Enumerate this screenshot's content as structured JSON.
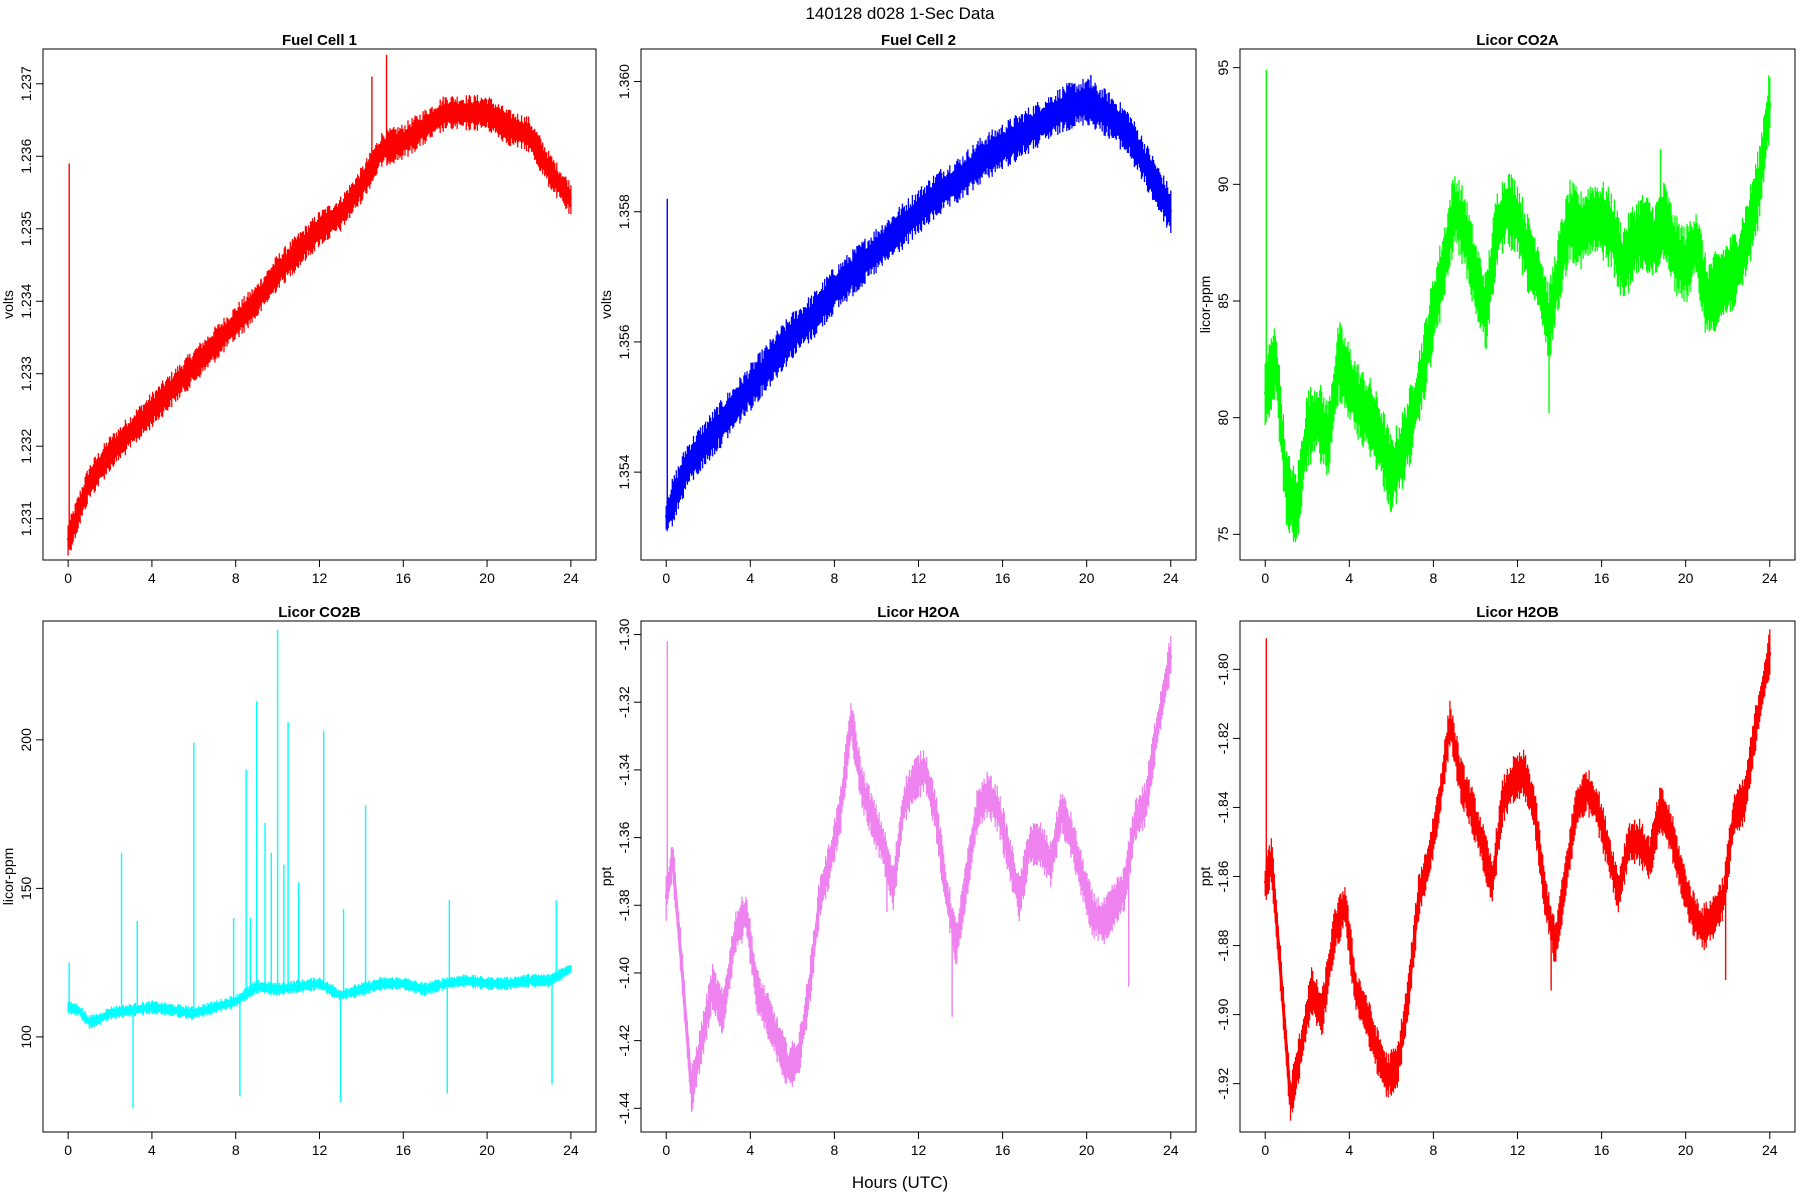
{
  "figure": {
    "title": "140128   d028   1-Sec Data",
    "xlabel": "Hours (UTC)"
  },
  "chart_data": [
    {
      "type": "line",
      "title": "Fuel Cell 1",
      "ylabel": "volts",
      "xlabel": "",
      "color": "#ff0000",
      "xlim": [
        -1.2,
        25.2
      ],
      "ylim": [
        1.23043,
        1.23748
      ],
      "xticks": [
        0,
        4,
        8,
        12,
        16,
        20,
        24
      ],
      "xtick_labels": [
        "0",
        "4",
        "8",
        "12",
        "16",
        "20",
        "24"
      ],
      "yticks": [
        1.231,
        1.232,
        1.233,
        1.234,
        1.235,
        1.236,
        1.237
      ],
      "ytick_labels": [
        "1.231",
        "1.232",
        "1.233",
        "1.234",
        "1.235",
        "1.236",
        "1.237"
      ],
      "x": [
        0,
        0.5,
        1,
        2,
        3,
        4,
        5,
        6,
        7,
        8,
        9,
        10,
        11,
        12,
        13,
        14,
        15,
        16,
        17,
        18,
        19,
        20,
        21,
        22,
        23,
        24
      ],
      "y": [
        1.2307,
        1.2311,
        1.2315,
        1.2319,
        1.2322,
        1.2325,
        1.2328,
        1.2331,
        1.2334,
        1.2337,
        1.234,
        1.2344,
        1.2347,
        1.235,
        1.2352,
        1.2356,
        1.2361,
        1.2362,
        1.2364,
        1.2366,
        1.2366,
        1.2366,
        1.2364,
        1.2363,
        1.2358,
        1.2354
      ],
      "band": 0.00022,
      "spikes": [
        {
          "x": 0.05,
          "y": 1.2359
        },
        {
          "x": 15.2,
          "y": 1.2374
        },
        {
          "x": 14.5,
          "y": 1.2371
        },
        {
          "x": 9.2,
          "y": 1.2343
        }
      ]
    },
    {
      "type": "line",
      "title": "Fuel Cell 2",
      "ylabel": "volts",
      "xlabel": "",
      "color": "#0000ff",
      "xlim": [
        -1.2,
        25.2
      ],
      "ylim": [
        1.35265,
        1.3605
      ],
      "xticks": [
        0,
        4,
        8,
        12,
        16,
        20,
        24
      ],
      "xtick_labels": [
        "0",
        "4",
        "8",
        "12",
        "16",
        "20",
        "24"
      ],
      "yticks": [
        1.354,
        1.356,
        1.358,
        1.36
      ],
      "ytick_labels": [
        "1.354",
        "1.356",
        "1.358",
        "1.360"
      ],
      "x": [
        0,
        0.5,
        1,
        2,
        3,
        4,
        5,
        6,
        7,
        8,
        9,
        10,
        11,
        12,
        13,
        14,
        15,
        16,
        17,
        18,
        19,
        20,
        21,
        22,
        23,
        24
      ],
      "y": [
        1.3533,
        1.3537,
        1.3541,
        1.3545,
        1.3549,
        1.3553,
        1.3557,
        1.3561,
        1.3564,
        1.3568,
        1.3571,
        1.3574,
        1.3577,
        1.358,
        1.3583,
        1.3585,
        1.3588,
        1.359,
        1.3592,
        1.3594,
        1.3596,
        1.3597,
        1.3595,
        1.3592,
        1.3586,
        1.358
      ],
      "band": 0.00032,
      "spikes": [
        {
          "x": 0.05,
          "y": 1.3582
        },
        {
          "x": 20.2,
          "y": 1.3601
        }
      ]
    },
    {
      "type": "line",
      "title": "Licor CO2A",
      "ylabel": "licor-ppm",
      "xlabel": "",
      "color": "#00ff00",
      "xlim": [
        -1.2,
        25.2
      ],
      "ylim": [
        73.9,
        95.8
      ],
      "xticks": [
        0,
        4,
        8,
        12,
        16,
        20,
        24
      ],
      "xtick_labels": [
        "0",
        "4",
        "8",
        "12",
        "16",
        "20",
        "24"
      ],
      "yticks": [
        75,
        80,
        85,
        90,
        95
      ],
      "ytick_labels": [
        "75",
        "80",
        "85",
        "90",
        "95"
      ],
      "x": [
        0,
        0.5,
        1,
        1.5,
        2,
        2.5,
        3,
        3.5,
        4,
        4.5,
        5,
        5.5,
        6,
        6.5,
        7,
        7.5,
        8,
        8.5,
        9,
        9.5,
        10,
        10.5,
        11,
        11.5,
        12,
        12.5,
        13,
        13.5,
        14,
        14.5,
        15,
        15.5,
        16,
        16.5,
        17,
        17.5,
        18,
        18.5,
        19,
        19.5,
        20,
        20.5,
        21,
        21.5,
        22,
        22.5,
        23,
        23.5,
        24
      ],
      "y": [
        81,
        82.5,
        77,
        76,
        79.5,
        80,
        79,
        82.5,
        81.5,
        80.5,
        80,
        79,
        77.5,
        78.5,
        80,
        82,
        84.5,
        86.5,
        89,
        88,
        86,
        84.5,
        88,
        89,
        88.5,
        87,
        86,
        84,
        86.5,
        88.5,
        88,
        88.5,
        88.5,
        88,
        86.5,
        87.5,
        88,
        87.5,
        88.5,
        87,
        86.5,
        87.5,
        85,
        85.5,
        86,
        86.5,
        88,
        90,
        93.5
      ],
      "band": 1.5,
      "spikes": [
        {
          "x": 0.05,
          "y": 94.9
        },
        {
          "x": 13.5,
          "y": 80.2
        },
        {
          "x": 18.8,
          "y": 91.5
        }
      ]
    },
    {
      "type": "line",
      "title": "Licor CO2B",
      "ylabel": "licor-ppm",
      "xlabel": "",
      "color": "#00ffff",
      "xlim": [
        -1.2,
        25.2
      ],
      "ylim": [
        68,
        240
      ],
      "xticks": [
        0,
        4,
        8,
        12,
        16,
        20,
        24
      ],
      "xtick_labels": [
        "0",
        "4",
        "8",
        "12",
        "16",
        "20",
        "24"
      ],
      "yticks": [
        100,
        150,
        200
      ],
      "ytick_labels": [
        "100",
        "150",
        "200"
      ],
      "x": [
        0,
        0.5,
        1,
        1.5,
        2,
        3,
        4,
        5,
        6,
        7,
        8,
        9,
        10,
        11,
        12,
        13,
        14,
        15,
        16,
        17,
        18,
        19,
        20,
        21,
        22,
        23,
        24
      ],
      "y": [
        110,
        109,
        105,
        106,
        108,
        109,
        110,
        109,
        108,
        110,
        112,
        117,
        116,
        117,
        118,
        114,
        116,
        118,
        118,
        116,
        118,
        119,
        118,
        118,
        119,
        119,
        123
      ],
      "band": 2,
      "spikes": [
        {
          "x": 0.05,
          "y": 125
        },
        {
          "x": 2.55,
          "y": 162
        },
        {
          "x": 3.1,
          "y": 76
        },
        {
          "x": 3.3,
          "y": 139
        },
        {
          "x": 6.0,
          "y": 199
        },
        {
          "x": 7.9,
          "y": 140
        },
        {
          "x": 8.2,
          "y": 80
        },
        {
          "x": 8.5,
          "y": 190
        },
        {
          "x": 8.7,
          "y": 140
        },
        {
          "x": 9.0,
          "y": 213
        },
        {
          "x": 9.4,
          "y": 172
        },
        {
          "x": 9.7,
          "y": 162
        },
        {
          "x": 10.0,
          "y": 237
        },
        {
          "x": 10.3,
          "y": 158
        },
        {
          "x": 10.5,
          "y": 206
        },
        {
          "x": 11.0,
          "y": 152
        },
        {
          "x": 12.2,
          "y": 203
        },
        {
          "x": 13.0,
          "y": 78
        },
        {
          "x": 13.15,
          "y": 143
        },
        {
          "x": 14.2,
          "y": 178
        },
        {
          "x": 18.1,
          "y": 81
        },
        {
          "x": 18.2,
          "y": 146
        },
        {
          "x": 23.1,
          "y": 84
        },
        {
          "x": 23.3,
          "y": 146
        }
      ]
    },
    {
      "type": "line",
      "title": "Licor H2OA",
      "ylabel": "ppt",
      "xlabel": "",
      "color": "#ee82ee",
      "xlim": [
        -1.2,
        25.2
      ],
      "ylim": [
        -1.447,
        -1.296
      ],
      "xticks": [
        0,
        4,
        8,
        12,
        16,
        20,
        24
      ],
      "xtick_labels": [
        "0",
        "4",
        "8",
        "12",
        "16",
        "20",
        "24"
      ],
      "yticks": [
        -1.44,
        -1.42,
        -1.4,
        -1.38,
        -1.36,
        -1.34,
        -1.32,
        -1.3
      ],
      "ytick_labels": [
        "-1.44",
        "-1.42",
        "-1.40",
        "-1.38",
        "-1.36",
        "-1.34",
        "-1.32",
        "-1.30"
      ],
      "x": [
        0,
        0.3,
        0.7,
        1.2,
        1.7,
        2.2,
        2.7,
        3.3,
        3.8,
        4.3,
        4.8,
        5.3,
        5.8,
        6.3,
        6.8,
        7.3,
        7.8,
        8.3,
        8.8,
        9.3,
        9.8,
        10.3,
        10.8,
        11.3,
        11.8,
        12.3,
        12.8,
        13.3,
        13.8,
        14.3,
        14.8,
        15.3,
        15.8,
        16.3,
        16.8,
        17.3,
        17.8,
        18.3,
        18.8,
        19.3,
        19.8,
        20.3,
        20.8,
        21.3,
        21.8,
        22.3,
        22.8,
        23.3,
        24
      ],
      "y": [
        -1.378,
        -1.366,
        -1.395,
        -1.435,
        -1.42,
        -1.404,
        -1.412,
        -1.388,
        -1.382,
        -1.405,
        -1.412,
        -1.42,
        -1.428,
        -1.425,
        -1.405,
        -1.378,
        -1.367,
        -1.352,
        -1.325,
        -1.345,
        -1.354,
        -1.362,
        -1.375,
        -1.35,
        -1.343,
        -1.34,
        -1.352,
        -1.375,
        -1.392,
        -1.372,
        -1.352,
        -1.347,
        -1.352,
        -1.365,
        -1.378,
        -1.362,
        -1.362,
        -1.368,
        -1.352,
        -1.36,
        -1.372,
        -1.383,
        -1.385,
        -1.38,
        -1.375,
        -1.355,
        -1.35,
        -1.33,
        -1.306
      ],
      "band": 0.006,
      "spikes": [
        {
          "x": 0.05,
          "y": -1.302
        },
        {
          "x": 10.5,
          "y": -1.382
        },
        {
          "x": 13.6,
          "y": -1.413
        },
        {
          "x": 22.0,
          "y": -1.404
        }
      ]
    },
    {
      "type": "line",
      "title": "Licor H2OB",
      "ylabel": "ppt",
      "xlabel": "",
      "color": "#ff0000",
      "xlim": [
        -1.2,
        25.2
      ],
      "ylim": [
        -1.934,
        -1.786
      ],
      "xticks": [
        0,
        4,
        8,
        12,
        16,
        20,
        24
      ],
      "xtick_labels": [
        "0",
        "4",
        "8",
        "12",
        "16",
        "20",
        "24"
      ],
      "yticks": [
        -1.92,
        -1.9,
        -1.88,
        -1.86,
        -1.84,
        -1.82,
        -1.8
      ],
      "ytick_labels": [
        "-1.92",
        "-1.90",
        "-1.88",
        "-1.86",
        "-1.84",
        "-1.82",
        "-1.80"
      ],
      "x": [
        0,
        0.3,
        0.7,
        1.2,
        1.7,
        2.2,
        2.7,
        3.3,
        3.8,
        4.3,
        4.8,
        5.3,
        5.8,
        6.3,
        6.8,
        7.3,
        7.8,
        8.3,
        8.8,
        9.3,
        9.8,
        10.3,
        10.8,
        11.3,
        11.8,
        12.3,
        12.8,
        13.3,
        13.8,
        14.3,
        14.8,
        15.3,
        15.8,
        16.3,
        16.8,
        17.3,
        17.8,
        18.3,
        18.8,
        19.3,
        19.8,
        20.3,
        20.8,
        21.3,
        21.8,
        22.3,
        22.8,
        23.3,
        24
      ],
      "y": [
        -1.862,
        -1.855,
        -1.885,
        -1.925,
        -1.91,
        -1.893,
        -1.9,
        -1.876,
        -1.868,
        -1.893,
        -1.9,
        -1.91,
        -1.918,
        -1.915,
        -1.895,
        -1.866,
        -1.855,
        -1.838,
        -1.815,
        -1.832,
        -1.84,
        -1.85,
        -1.862,
        -1.838,
        -1.832,
        -1.83,
        -1.84,
        -1.865,
        -1.88,
        -1.86,
        -1.84,
        -1.835,
        -1.84,
        -1.852,
        -1.865,
        -1.85,
        -1.85,
        -1.855,
        -1.84,
        -1.847,
        -1.86,
        -1.87,
        -1.875,
        -1.872,
        -1.866,
        -1.842,
        -1.838,
        -1.818,
        -1.795
      ],
      "band": 0.006,
      "spikes": [
        {
          "x": 0.05,
          "y": -1.791
        },
        {
          "x": 13.6,
          "y": -1.893
        },
        {
          "x": 21.9,
          "y": -1.89
        }
      ]
    }
  ]
}
